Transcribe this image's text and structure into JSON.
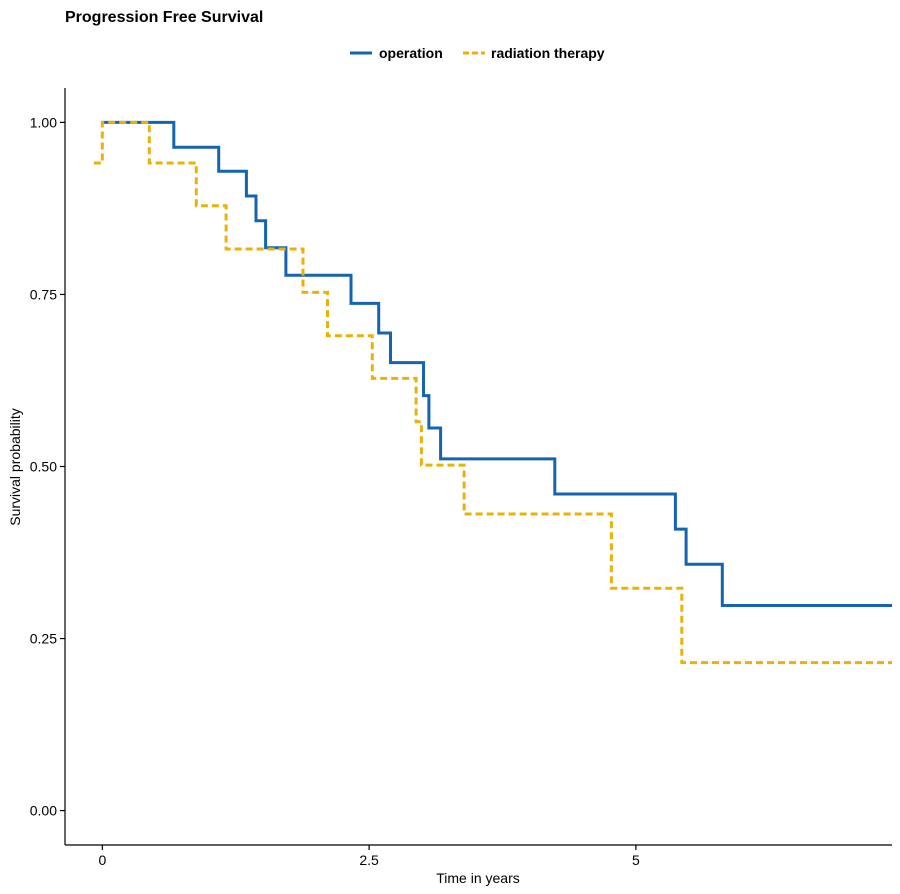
{
  "chart_data": {
    "type": "line",
    "step": true,
    "title": "Progression Free Survival",
    "xlabel": "Time in years",
    "ylabel": "Survival probability",
    "xlim": [
      -0.35,
      7.4
    ],
    "ylim": [
      -0.05,
      1.05
    ],
    "x_ticks": [
      0,
      2.5,
      5
    ],
    "x_tick_labels": [
      "0",
      "2.5",
      "5"
    ],
    "y_ticks": [
      0,
      0.25,
      0.5,
      0.75,
      1.0
    ],
    "y_tick_labels": [
      "0.00",
      "0.25",
      "0.50",
      "0.75",
      "1.00"
    ],
    "grid": false,
    "legend_position": "top",
    "series": [
      {
        "name": "operation",
        "color": "#1663b0",
        "dash": "solid",
        "points": [
          [
            0.0,
            1.0
          ],
          [
            0.67,
            0.964
          ],
          [
            1.09,
            0.929
          ],
          [
            1.35,
            0.893
          ],
          [
            1.44,
            0.857
          ],
          [
            1.53,
            0.818
          ],
          [
            1.72,
            0.778
          ],
          [
            2.33,
            0.737
          ],
          [
            2.59,
            0.694
          ],
          [
            2.7,
            0.651
          ],
          [
            3.01,
            0.603
          ],
          [
            3.06,
            0.556
          ],
          [
            3.17,
            0.511
          ],
          [
            4.24,
            0.46
          ],
          [
            5.37,
            0.409
          ],
          [
            5.47,
            0.358
          ],
          [
            5.81,
            0.298
          ],
          [
            7.4,
            0.298
          ]
        ]
      },
      {
        "name": "radiation therapy",
        "color": "#e8b20b",
        "dash": "dashed",
        "points": [
          [
            -0.08,
            0.941
          ],
          [
            0.0,
            1.0
          ],
          [
            0.44,
            0.941
          ],
          [
            0.88,
            0.879
          ],
          [
            1.16,
            0.816
          ],
          [
            1.88,
            0.753
          ],
          [
            2.11,
            0.69
          ],
          [
            2.53,
            0.628
          ],
          [
            2.94,
            0.565
          ],
          [
            2.99,
            0.502
          ],
          [
            3.39,
            0.431
          ],
          [
            4.77,
            0.323
          ],
          [
            5.43,
            0.215
          ],
          [
            7.4,
            0.215
          ]
        ]
      }
    ]
  }
}
